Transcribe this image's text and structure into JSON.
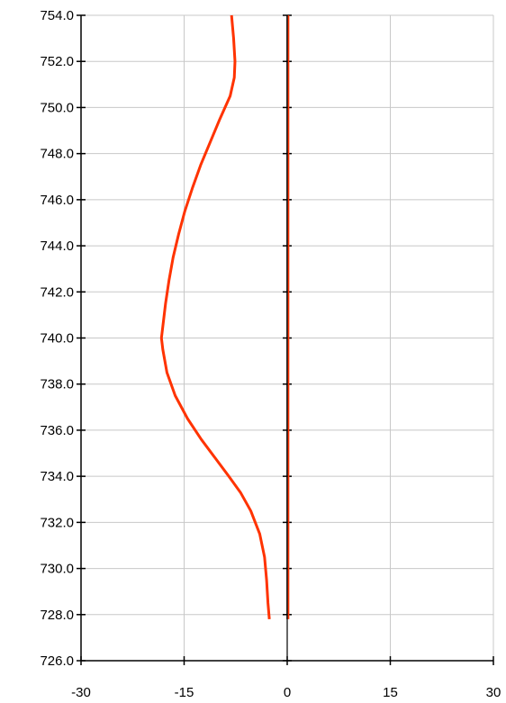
{
  "chart_data": {
    "type": "line",
    "title": "",
    "xlabel": "",
    "ylabel": "",
    "xlim": [
      -30,
      30
    ],
    "ylim": [
      726,
      754
    ],
    "x_ticks": [
      -30,
      -15,
      0,
      15,
      30
    ],
    "y_ticks": [
      726,
      728,
      730,
      732,
      734,
      736,
      738,
      740,
      742,
      744,
      746,
      748,
      750,
      752,
      754
    ],
    "x_tick_labels": [
      "-30",
      "-15",
      "0",
      "15",
      "30"
    ],
    "y_tick_labels": [
      "726.0",
      "728.0",
      "730.0",
      "732.0",
      "734.0",
      "736.0",
      "738.0",
      "740.0",
      "742.0",
      "744.0",
      "746.0",
      "748.0",
      "750.0",
      "752.0",
      "754.0"
    ],
    "grid": true,
    "legend": "none",
    "series": [
      {
        "color": "#ff3300",
        "points": [
          [
            -2.6,
            727.8
          ],
          [
            -2.8,
            728.5
          ],
          [
            -3.0,
            729.5
          ],
          [
            -3.3,
            730.5
          ],
          [
            -4.0,
            731.5
          ],
          [
            -5.3,
            732.5
          ],
          [
            -6.8,
            733.3
          ],
          [
            -8.5,
            734.0
          ],
          [
            -10.5,
            734.8
          ],
          [
            -12.5,
            735.6
          ],
          [
            -14.5,
            736.5
          ],
          [
            -16.3,
            737.5
          ],
          [
            -17.5,
            738.5
          ],
          [
            -18.1,
            739.5
          ],
          [
            -18.3,
            740.0
          ],
          [
            -18.1,
            740.5
          ],
          [
            -17.7,
            741.5
          ],
          [
            -17.2,
            742.5
          ],
          [
            -16.6,
            743.5
          ],
          [
            -15.8,
            744.5
          ],
          [
            -14.9,
            745.5
          ],
          [
            -13.8,
            746.5
          ],
          [
            -12.6,
            747.5
          ],
          [
            -11.2,
            748.5
          ],
          [
            -9.8,
            749.5
          ],
          [
            -8.3,
            750.5
          ],
          [
            -7.7,
            751.3
          ],
          [
            -7.6,
            752.0
          ],
          [
            -7.8,
            753.0
          ],
          [
            -8.1,
            754.0
          ]
        ]
      },
      {
        "color": "#000000",
        "points": [
          [
            0,
            727.8
          ],
          [
            0,
            754.0
          ]
        ]
      },
      {
        "color": "#ff3300",
        "points": [
          [
            0.2,
            727.8
          ],
          [
            0.2,
            754.0
          ]
        ]
      }
    ]
  }
}
